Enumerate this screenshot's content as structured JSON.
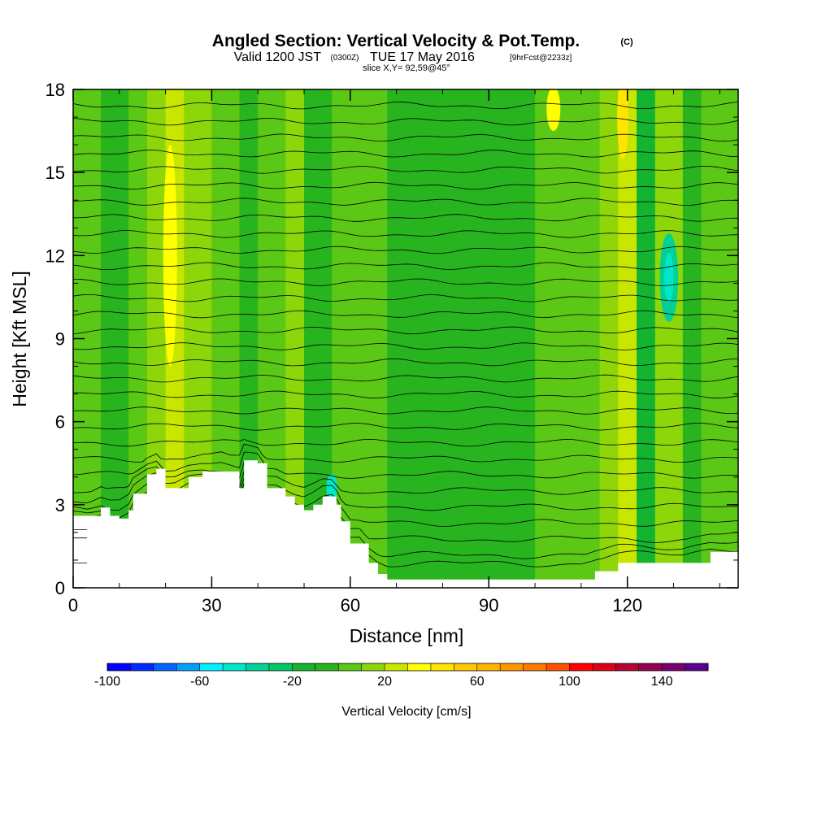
{
  "title": {
    "main": "Angled Section: Vertical Velocity & Pot.Temp.",
    "unit": "(C)",
    "valid_prefix": "Valid 1200 JST",
    "valid_utc": "(0300Z)",
    "valid_date": "TUE 17 May 2016",
    "forecast": "[9hrFcst@2233z]",
    "slice": "slice X,Y= 92,59@45°"
  },
  "chart_data": {
    "type": "heatmap",
    "xlabel": "Distance [nm]",
    "ylabel": "Height [Kft MSL]",
    "xlim": [
      0,
      144
    ],
    "ylim": [
      0,
      18
    ],
    "x_ticks": [
      0,
      30,
      60,
      90,
      120
    ],
    "y_ticks": [
      0,
      3,
      6,
      9,
      12,
      15,
      18
    ],
    "x_tick_labels": [
      "0",
      "30",
      "60",
      "90",
      "120"
    ],
    "y_tick_labels": [
      "0",
      "3",
      "6",
      "9",
      "12",
      "15",
      "18"
    ],
    "terrain": {
      "x": [
        0,
        3,
        6,
        8,
        10,
        12,
        13,
        16,
        18,
        20,
        22,
        25,
        28,
        32,
        36,
        37,
        40,
        42,
        44,
        46,
        48,
        50,
        52,
        54,
        56,
        57,
        58,
        60,
        62,
        64,
        66,
        68,
        70,
        75,
        80,
        85,
        90,
        95,
        100,
        105,
        110,
        113,
        118,
        124,
        128,
        132,
        138,
        144
      ],
      "y": [
        2.6,
        2.6,
        2.9,
        2.6,
        2.5,
        2.8,
        3.4,
        4.1,
        4.3,
        3.6,
        3.6,
        4.0,
        4.2,
        4.2,
        3.6,
        4.6,
        4.5,
        3.6,
        3.6,
        3.3,
        3.0,
        2.8,
        3.0,
        3.3,
        3.3,
        3.0,
        2.4,
        1.6,
        1.6,
        0.9,
        0.5,
        0.3,
        0.3,
        0.3,
        0.3,
        0.3,
        0.3,
        0.3,
        0.3,
        0.3,
        0.3,
        0.6,
        0.9,
        0.9,
        0.9,
        0.9,
        1.3,
        1.3
      ]
    },
    "velocity_bands": [
      {
        "x0": 0,
        "x1": 6,
        "value": 0
      },
      {
        "x0": 6,
        "x1": 12,
        "value": -10
      },
      {
        "x0": 12,
        "x1": 16,
        "value": 0
      },
      {
        "x0": 16,
        "x1": 20,
        "value": 10
      },
      {
        "x0": 20,
        "x1": 24,
        "value": 25
      },
      {
        "x0": 24,
        "x1": 30,
        "value": 10
      },
      {
        "x0": 30,
        "x1": 36,
        "value": 0
      },
      {
        "x0": 36,
        "x1": 40,
        "value": -5
      },
      {
        "x0": 40,
        "x1": 46,
        "value": 5
      },
      {
        "x0": 46,
        "x1": 50,
        "value": 15
      },
      {
        "x0": 50,
        "x1": 56,
        "value": -10
      },
      {
        "x0": 56,
        "x1": 62,
        "value": 5
      },
      {
        "x0": 62,
        "x1": 68,
        "value": 0
      },
      {
        "x0": 68,
        "x1": 90,
        "value": -10
      },
      {
        "x0": 90,
        "x1": 100,
        "value": -5
      },
      {
        "x0": 100,
        "x1": 108,
        "value": 0
      },
      {
        "x0": 108,
        "x1": 114,
        "value": 5
      },
      {
        "x0": 114,
        "x1": 118,
        "value": 10
      },
      {
        "x0": 118,
        "x1": 122,
        "value": 25
      },
      {
        "x0": 122,
        "x1": 126,
        "value": -20
      },
      {
        "x0": 126,
        "x1": 132,
        "value": 15
      },
      {
        "x0": 132,
        "x1": 136,
        "value": -10
      },
      {
        "x0": 136,
        "x1": 144,
        "value": 5
      }
    ],
    "velocity_features": [
      {
        "x": 129,
        "y": 11.2,
        "rx": 2,
        "ry": 1.6,
        "value": -40
      },
      {
        "x": 129,
        "y": 11.2,
        "rx": 1,
        "ry": 0.9,
        "value": -50
      },
      {
        "x": 56,
        "y": 3.6,
        "rx": 1.2,
        "ry": 0.5,
        "value": -50
      },
      {
        "x": 21,
        "y": 12,
        "rx": 1.5,
        "ry": 4,
        "value": 35
      },
      {
        "x": 119,
        "y": 17,
        "rx": 1.2,
        "ry": 1.5,
        "value": 40
      },
      {
        "x": 104,
        "y": 17.3,
        "rx": 1.5,
        "ry": 0.8,
        "value": 30
      }
    ],
    "theta_lines": {
      "count": 30,
      "y_start": 0.6,
      "y_step": 0.58
    },
    "colorbar": {
      "label": "Vertical Velocity [cm/s]",
      "min": -100,
      "max": 160,
      "step": 10,
      "tick_values": [
        -100,
        -60,
        -20,
        20,
        60,
        100,
        140
      ],
      "tick_labels": [
        "-100",
        "-60",
        "-20",
        "20",
        "60",
        "100",
        "140"
      ],
      "colors": [
        "#0000ff",
        "#0028ff",
        "#0064ff",
        "#00a0ff",
        "#00f0ff",
        "#00e6c8",
        "#00d296",
        "#00c864",
        "#14b432",
        "#28b41e",
        "#5ac814",
        "#8cd60a",
        "#c8e600",
        "#ffff00",
        "#ffe600",
        "#ffc800",
        "#ffb400",
        "#ff9600",
        "#ff7800",
        "#ff5000",
        "#ff0000",
        "#dc0014",
        "#b40032",
        "#960050",
        "#7a006e",
        "#5a008c"
      ]
    }
  }
}
